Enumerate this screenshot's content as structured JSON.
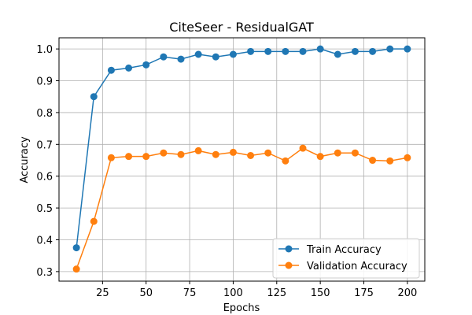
{
  "chart_data": {
    "type": "line",
    "title": "CiteSeer - ResidualGAT",
    "xlabel": "Epochs",
    "ylabel": "Accuracy",
    "xlim": [
      0,
      210
    ],
    "ylim": [
      0.27,
      1.035
    ],
    "xticks": [
      25,
      50,
      75,
      100,
      125,
      150,
      175,
      200
    ],
    "yticks": [
      0.3,
      0.4,
      0.5,
      0.6,
      0.7,
      0.8,
      0.9,
      1.0
    ],
    "grid": true,
    "legend_position": "lower-right",
    "x": [
      10,
      20,
      30,
      40,
      50,
      60,
      70,
      80,
      90,
      100,
      110,
      120,
      130,
      140,
      150,
      160,
      170,
      180,
      190,
      200
    ],
    "series": [
      {
        "name": "Train Accuracy",
        "color": "#1f77b4",
        "values": [
          0.375,
          0.85,
          0.933,
          0.94,
          0.95,
          0.975,
          0.968,
          0.983,
          0.975,
          0.983,
          0.992,
          0.992,
          0.992,
          0.992,
          1.0,
          0.983,
          0.992,
          0.992,
          1.0,
          1.0
        ]
      },
      {
        "name": "Validation Accuracy",
        "color": "#ff7f0e",
        "values": [
          0.308,
          0.458,
          0.658,
          0.662,
          0.662,
          0.673,
          0.668,
          0.68,
          0.668,
          0.675,
          0.665,
          0.673,
          0.648,
          0.688,
          0.662,
          0.673,
          0.673,
          0.65,
          0.648,
          0.658
        ]
      }
    ]
  }
}
